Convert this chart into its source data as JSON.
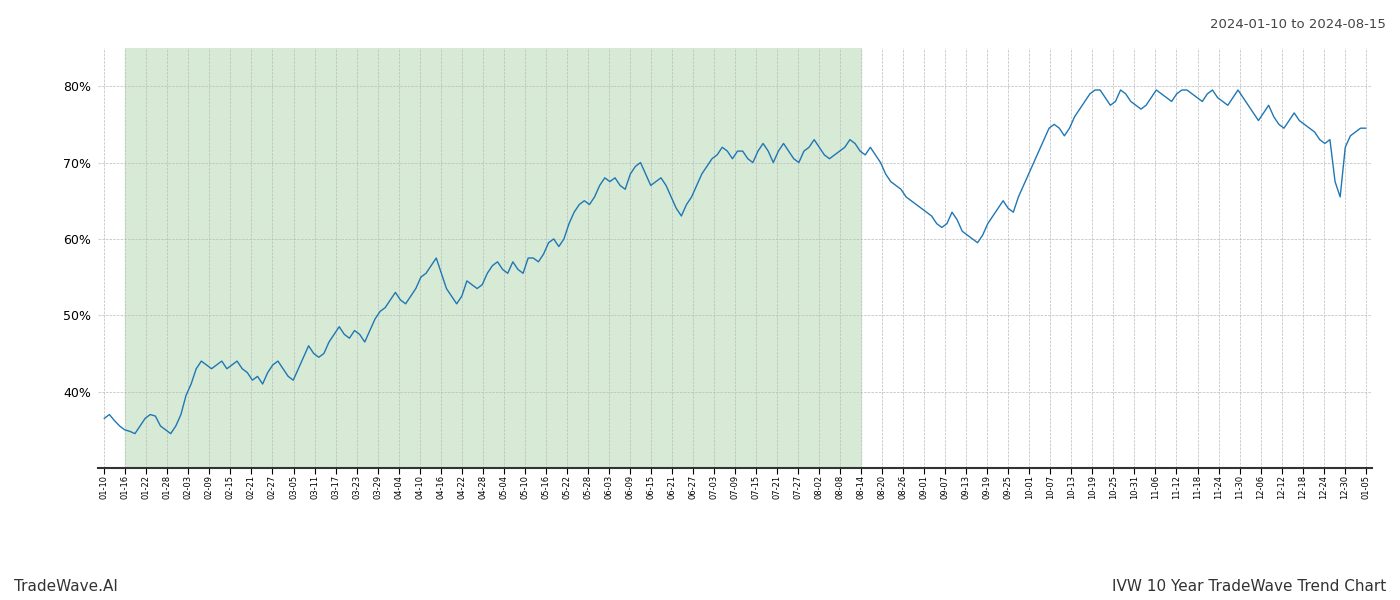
{
  "title_top_right": "2024-01-10 to 2024-08-15",
  "title_bottom_right": "IVW 10 Year TradeWave Trend Chart",
  "title_bottom_left": "TradeWave.AI",
  "line_color": "#1f77b4",
  "shade_color": "#d6ead6",
  "background_color": "#ffffff",
  "grid_color": "#bbbbbb",
  "ylim": [
    30,
    85
  ],
  "yticks": [
    40,
    50,
    60,
    70,
    80
  ],
  "x_labels": [
    "01-10",
    "01-16",
    "01-22",
    "01-28",
    "02-03",
    "02-09",
    "02-15",
    "02-21",
    "02-27",
    "03-05",
    "03-11",
    "03-17",
    "03-23",
    "03-29",
    "04-04",
    "04-10",
    "04-16",
    "04-22",
    "04-28",
    "05-04",
    "05-10",
    "05-16",
    "05-22",
    "05-28",
    "06-03",
    "06-09",
    "06-15",
    "06-21",
    "06-27",
    "07-03",
    "07-09",
    "07-15",
    "07-21",
    "07-27",
    "08-02",
    "08-08",
    "08-14",
    "08-20",
    "08-26",
    "09-01",
    "09-07",
    "09-13",
    "09-19",
    "09-25",
    "10-01",
    "10-07",
    "10-13",
    "10-19",
    "10-25",
    "10-31",
    "11-06",
    "11-12",
    "11-18",
    "11-24",
    "11-30",
    "12-06",
    "12-12",
    "12-18",
    "12-24",
    "12-30",
    "01-05"
  ],
  "shade_start_label": "01-16",
  "shade_end_label": "08-14",
  "values": [
    36.5,
    37.0,
    36.2,
    35.5,
    35.0,
    34.8,
    34.5,
    35.5,
    36.5,
    37.0,
    36.8,
    35.5,
    35.0,
    34.5,
    35.5,
    37.0,
    39.5,
    41.0,
    43.0,
    44.0,
    43.5,
    43.0,
    43.5,
    44.0,
    43.0,
    43.5,
    44.0,
    43.0,
    42.5,
    41.5,
    42.0,
    41.0,
    42.5,
    43.5,
    44.0,
    43.0,
    42.0,
    41.5,
    43.0,
    44.5,
    46.0,
    45.0,
    44.5,
    45.0,
    46.5,
    47.5,
    48.5,
    47.5,
    47.0,
    48.0,
    47.5,
    46.5,
    48.0,
    49.5,
    50.5,
    51.0,
    52.0,
    53.0,
    52.0,
    51.5,
    52.5,
    53.5,
    55.0,
    55.5,
    56.5,
    57.5,
    55.5,
    53.5,
    52.5,
    51.5,
    52.5,
    54.5,
    54.0,
    53.5,
    54.0,
    55.5,
    56.5,
    57.0,
    56.0,
    55.5,
    57.0,
    56.0,
    55.5,
    57.5,
    57.5,
    57.0,
    58.0,
    59.5,
    60.0,
    59.0,
    60.0,
    62.0,
    63.5,
    64.5,
    65.0,
    64.5,
    65.5,
    67.0,
    68.0,
    67.5,
    68.0,
    67.0,
    66.5,
    68.5,
    69.5,
    70.0,
    68.5,
    67.0,
    67.5,
    68.0,
    67.0,
    65.5,
    64.0,
    63.0,
    64.5,
    65.5,
    67.0,
    68.5,
    69.5,
    70.5,
    71.0,
    72.0,
    71.5,
    70.5,
    71.5,
    71.5,
    70.5,
    70.0,
    71.5,
    72.5,
    71.5,
    70.0,
    71.5,
    72.5,
    71.5,
    70.5,
    70.0,
    71.5,
    72.0,
    73.0,
    72.0,
    71.0,
    70.5,
    71.0,
    71.5,
    72.0,
    73.0,
    72.5,
    71.5,
    71.0,
    72.0,
    71.0,
    70.0,
    68.5,
    67.5,
    67.0,
    66.5,
    65.5,
    65.0,
    64.5,
    64.0,
    63.5,
    63.0,
    62.0,
    61.5,
    62.0,
    63.5,
    62.5,
    61.0,
    60.5,
    60.0,
    59.5,
    60.5,
    62.0,
    63.0,
    64.0,
    65.0,
    64.0,
    63.5,
    65.5,
    67.0,
    68.5,
    70.0,
    71.5,
    73.0,
    74.5,
    75.0,
    74.5,
    73.5,
    74.5,
    76.0,
    77.0,
    78.0,
    79.0,
    79.5,
    79.5,
    78.5,
    77.5,
    78.0,
    79.5,
    79.0,
    78.0,
    77.5,
    77.0,
    77.5,
    78.5,
    79.5,
    79.0,
    78.5,
    78.0,
    79.0,
    79.5,
    79.5,
    79.0,
    78.5,
    78.0,
    79.0,
    79.5,
    78.5,
    78.0,
    77.5,
    78.5,
    79.5,
    78.5,
    77.5,
    76.5,
    75.5,
    76.5,
    77.5,
    76.0,
    75.0,
    74.5,
    75.5,
    76.5,
    75.5,
    75.0,
    74.5,
    74.0,
    73.0,
    72.5,
    73.0,
    67.5,
    65.5,
    72.0,
    73.5,
    74.0,
    74.5,
    74.5
  ]
}
